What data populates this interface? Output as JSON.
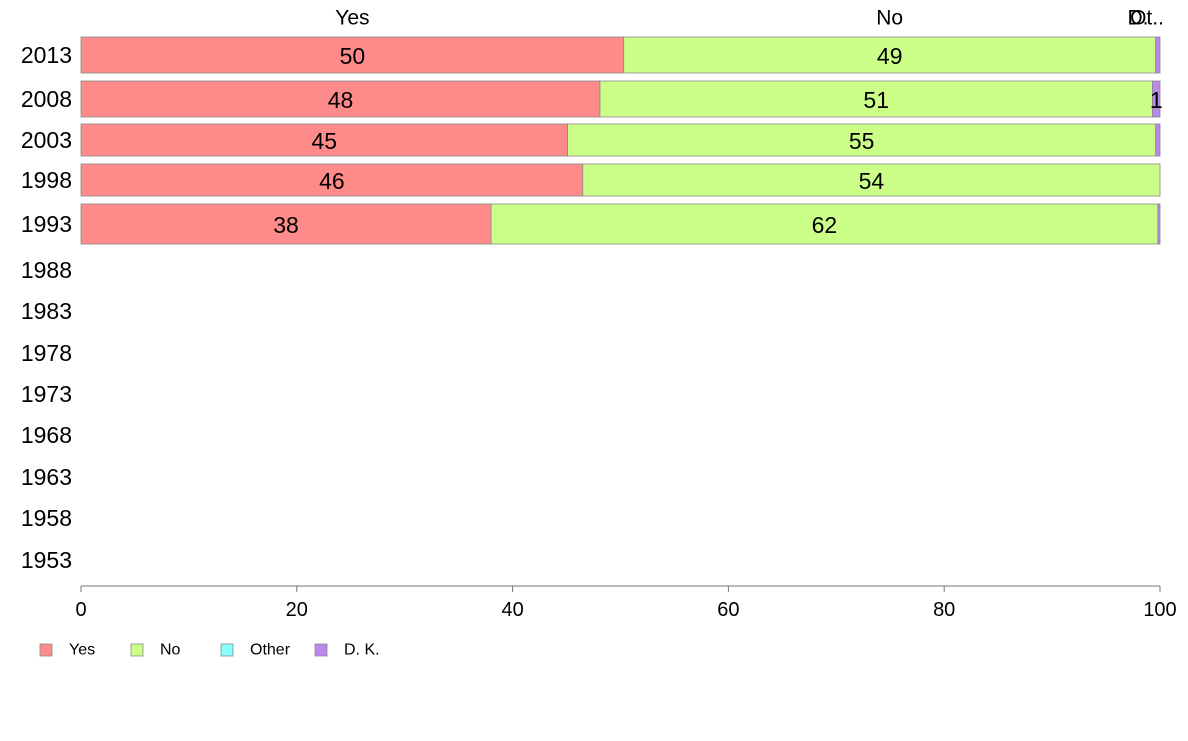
{
  "chart_data": {
    "type": "bar",
    "orientation": "horizontal",
    "stacked": true,
    "categories": [
      "2013",
      "2008",
      "2003",
      "1998",
      "1993",
      "1988",
      "1983",
      "1978",
      "1973",
      "1968",
      "1963",
      "1958",
      "1953"
    ],
    "series": [
      {
        "name": "Yes",
        "color": "#ff8a8a",
        "values": [
          50.3,
          48.1,
          45.1,
          46.5,
          38.0,
          null,
          null,
          null,
          null,
          null,
          null,
          null,
          null
        ],
        "labels": [
          "50",
          "48",
          "45",
          "46",
          "38",
          "",
          "",
          "",
          "",
          "",
          "",
          "",
          ""
        ]
      },
      {
        "name": "No",
        "color": "#ccff88",
        "values": [
          49.3,
          51.2,
          54.5,
          53.5,
          61.8,
          null,
          null,
          null,
          null,
          null,
          null,
          null,
          null
        ],
        "labels": [
          "49",
          "51",
          "55",
          "54",
          "62",
          "",
          "",
          "",
          "",
          "",
          "",
          "",
          ""
        ]
      },
      {
        "name": "Other",
        "color": "#88ffff",
        "values": [
          0.0,
          0.0,
          0.0,
          0.0,
          0.0,
          null,
          null,
          null,
          null,
          null,
          null,
          null,
          null
        ],
        "labels": [
          "",
          "",
          "",
          "",
          "",
          "",
          "",
          "",
          "",
          "",
          "",
          "",
          ""
        ]
      },
      {
        "name": "D. K.",
        "color": "#bb88ee",
        "values": [
          0.4,
          0.7,
          0.4,
          0.0,
          0.2,
          null,
          null,
          null,
          null,
          null,
          null,
          null,
          null
        ],
        "labels": [
          "",
          "1",
          "",
          "",
          "",
          "",
          "",
          "",
          "",
          "",
          "",
          "",
          ""
        ]
      }
    ],
    "top_labels": [
      "Yes",
      "No",
      "Ot..",
      "D."
    ],
    "xlim": [
      0,
      100
    ],
    "xticks": [
      0,
      20,
      40,
      60,
      80,
      100
    ],
    "grid": false,
    "legend_position": "bottom-left"
  }
}
